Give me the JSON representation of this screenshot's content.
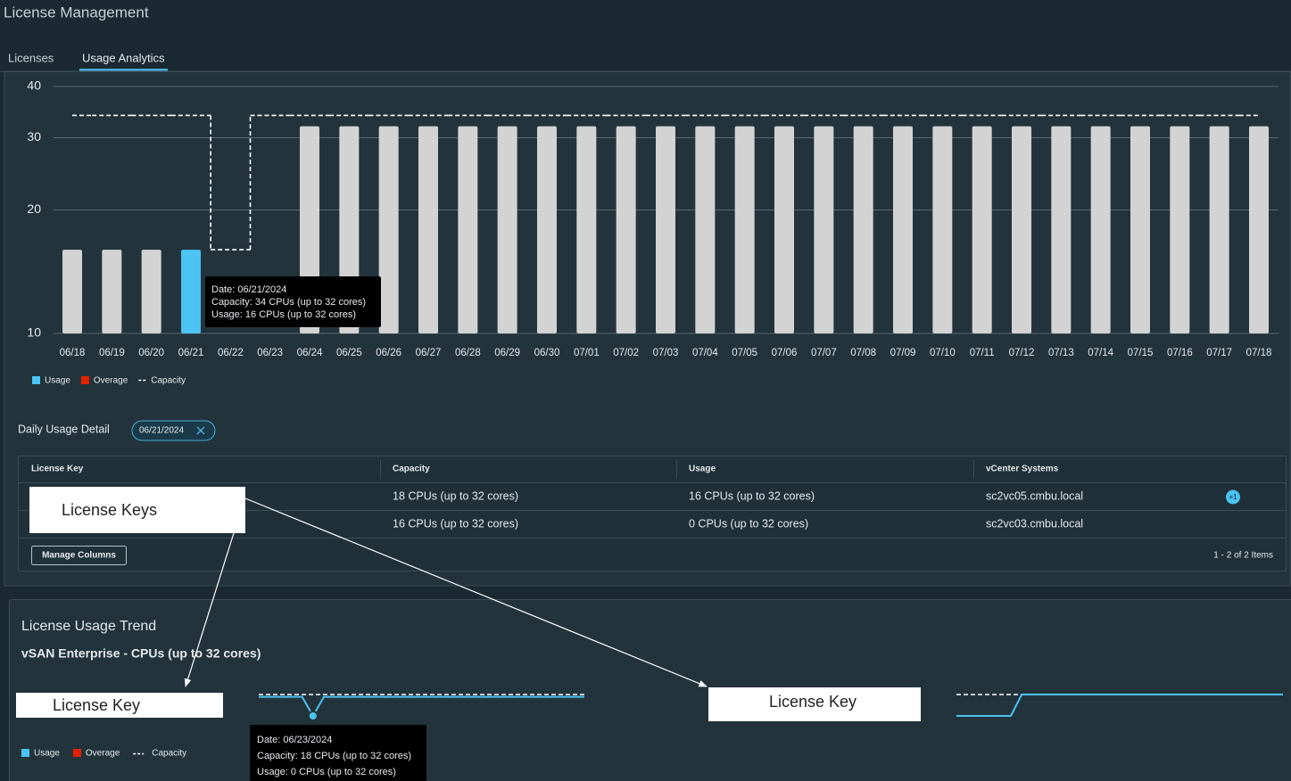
{
  "header": {
    "title": "License Management"
  },
  "tabs": {
    "items": [
      "Licenses",
      "Usage Analytics"
    ],
    "active": 1
  },
  "chart_data": {
    "type": "bar",
    "categories": [
      "06/18",
      "06/19",
      "06/20",
      "06/21",
      "06/22",
      "06/23",
      "06/24",
      "06/25",
      "06/26",
      "06/27",
      "06/28",
      "06/29",
      "06/30",
      "07/01",
      "07/02",
      "07/03",
      "07/04",
      "07/05",
      "07/06",
      "07/07",
      "07/08",
      "07/09",
      "07/10",
      "07/11",
      "07/12",
      "07/13",
      "07/14",
      "07/15",
      "07/16",
      "07/17",
      "07/18"
    ],
    "series": [
      {
        "name": "Usage",
        "type": "bar",
        "color": "#4cc3f2",
        "bar_color": "#d3d3d3",
        "selected": 3,
        "values": [
          16,
          16,
          16,
          16,
          null,
          null,
          32,
          32,
          32,
          32,
          32,
          32,
          32,
          32,
          32,
          32,
          32,
          32,
          32,
          32,
          32,
          32,
          32,
          32,
          32,
          32,
          32,
          32,
          32,
          32,
          32
        ]
      },
      {
        "name": "Overage",
        "type": "bar",
        "color": "#e12200",
        "values": [
          null,
          null,
          null,
          null,
          null,
          null,
          null,
          null,
          null,
          null,
          null,
          null,
          null,
          null,
          null,
          null,
          null,
          null,
          null,
          null,
          null,
          null,
          null,
          null,
          null,
          null,
          null,
          null,
          null,
          null,
          null
        ]
      },
      {
        "name": "Capacity",
        "type": "line",
        "color": "#ffffff",
        "dashed": true,
        "values": [
          34,
          34,
          34,
          34,
          16,
          34,
          34,
          34,
          34,
          34,
          34,
          34,
          34,
          34,
          34,
          34,
          34,
          34,
          34,
          34,
          34,
          34,
          34,
          34,
          34,
          34,
          34,
          34,
          34,
          34,
          34
        ]
      }
    ],
    "ylim": [
      10,
      40
    ],
    "yticks": [
      10,
      20,
      30,
      40
    ],
    "log_scale": true,
    "grid": true,
    "tooltip": {
      "lines": [
        "Date: 06/21/2024",
        "Capacity: 34 CPUs (up to 32 cores)",
        "Usage: 16 CPUs (up to 32 cores)"
      ]
    }
  },
  "detail": {
    "label": "Daily Usage Detail",
    "filter": "06/21/2024"
  },
  "table": {
    "columns": [
      "License Key",
      "Capacity",
      "Usage",
      "vCenter Systems"
    ],
    "rows": [
      [
        "18 CPUs (up to 32 cores)",
        "16 CPUs (up to 32 cores)",
        "sc2vc05.cmbu.local",
        "+1"
      ],
      [
        "16 CPUs (up to 32 cores)",
        "0 CPUs (up to 32 cores)",
        "sc2vc03.cmbu.local"
      ]
    ],
    "manage_columns": "Manage Columns",
    "pagination": "1 - 2 of 2 Items"
  },
  "trend": {
    "title": "License Usage Trend",
    "subtitle": "vSAN Enterprise - CPUs (up to 32 cores)",
    "legend": [
      {
        "name": "Usage",
        "color": "#4cc3f2",
        "marker": "square"
      },
      {
        "name": "Overage",
        "color": "#e12200",
        "marker": "square"
      },
      {
        "name": "Capacity",
        "color": "#ffffff",
        "marker": "dash"
      }
    ],
    "charts": [
      {
        "type": "line",
        "tooltip_index": 5,
        "usage": [
          16,
          16,
          16,
          16,
          16,
          0,
          16,
          16,
          16,
          16,
          16,
          16,
          16,
          16,
          16,
          16,
          16,
          16,
          16,
          16,
          16,
          16,
          16,
          16,
          16,
          16,
          16,
          16,
          16,
          16,
          16
        ],
        "capacity": [
          18,
          18,
          18,
          18,
          18,
          18,
          18,
          18,
          18,
          18,
          18,
          18,
          18,
          18,
          18,
          18,
          18,
          18,
          18,
          18,
          18,
          18,
          18,
          18,
          18,
          18,
          18,
          18,
          18,
          18,
          18
        ]
      },
      {
        "type": "line",
        "usage": [
          0,
          0,
          0,
          0,
          0,
          0,
          16,
          16,
          16,
          16,
          16,
          16,
          16,
          16,
          16,
          16,
          16,
          16,
          16,
          16,
          16,
          16,
          16,
          16,
          16,
          16,
          16,
          16,
          16,
          16,
          16
        ],
        "capacity": [
          16,
          16,
          16,
          16,
          16,
          16,
          16,
          16,
          16,
          16,
          16,
          16,
          16,
          16,
          16,
          16,
          16,
          16,
          16,
          16,
          16,
          16,
          16,
          16,
          16,
          16,
          16,
          16,
          16,
          16,
          16
        ]
      }
    ],
    "tooltip": {
      "lines": [
        "Date: 06/23/2024",
        "Capacity: 18 CPUs (up to 32 cores)",
        "Usage: 0 CPUs (up to 32 cores)"
      ]
    }
  },
  "annotations": [
    "License Keys",
    "License Key",
    "License Key"
  ]
}
